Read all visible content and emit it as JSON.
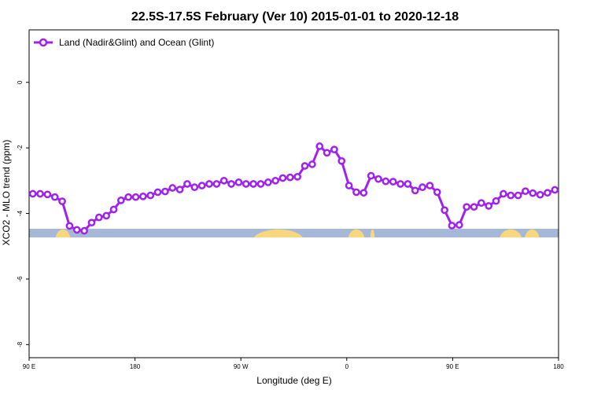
{
  "chart_data": {
    "type": "line",
    "title": "22.5S-17.5S February (Ver 10)   2015-01-01 to 2020-12-18",
    "xlabel": "Longitude (deg E)",
    "ylabel": "XCO2 - MLO trend (ppm)",
    "xlim": [
      90,
      450
    ],
    "ylim": [
      -8.4,
      1.6
    ],
    "x_ticks": [
      {
        "value": 90,
        "label": "90 E"
      },
      {
        "value": 162,
        "label": "180"
      },
      {
        "value": 234,
        "label": "90 W"
      },
      {
        "value": 306,
        "label": "0"
      },
      {
        "value": 378,
        "label": "90 E"
      },
      {
        "value": 450,
        "label": "180"
      }
    ],
    "y_ticks": [
      {
        "value": 0,
        "label": "0"
      },
      {
        "value": -2,
        "label": "-2"
      },
      {
        "value": -4,
        "label": "-4"
      },
      {
        "value": -6,
        "label": "-6"
      },
      {
        "value": -8,
        "label": "-8"
      }
    ],
    "legend": {
      "position": "top-left"
    },
    "series": [
      {
        "name": "Land (Nadir&Glint) and Ocean (Glint)",
        "color": "#a020f0",
        "x": [
          92.5,
          97.5,
          102.5,
          107.5,
          112.5,
          117.5,
          122.5,
          127.5,
          132.5,
          137.5,
          142.5,
          147.5,
          152.5,
          157.5,
          162.5,
          167.5,
          172.5,
          177.5,
          182.5,
          187.5,
          192.5,
          197.5,
          202.5,
          207.5,
          212.5,
          217.5,
          222.5,
          227.5,
          232.5,
          237.5,
          242.5,
          247.5,
          252.5,
          257.5,
          262.5,
          267.5,
          272.5,
          277.5,
          282.5,
          287.5,
          292.5,
          297.5,
          302.5,
          307.5,
          312.5,
          317.5,
          322.5,
          327.5,
          332.5,
          337.5,
          342.5,
          347.5,
          352.5,
          357.5,
          362.5,
          367.5,
          372.5,
          377.5,
          382.5,
          387.5,
          392.5,
          397.5,
          402.5,
          407.5,
          412.5,
          417.5,
          422.5,
          427.5,
          432.5,
          437.5,
          442.5,
          447.5
        ],
        "y": [
          -3.4,
          -3.4,
          -3.42,
          -3.5,
          -3.63,
          -4.38,
          -4.5,
          -4.53,
          -4.28,
          -4.12,
          -4.07,
          -3.88,
          -3.6,
          -3.5,
          -3.5,
          -3.48,
          -3.45,
          -3.35,
          -3.33,
          -3.22,
          -3.27,
          -3.1,
          -3.2,
          -3.15,
          -3.1,
          -3.1,
          -3.0,
          -3.1,
          -3.05,
          -3.1,
          -3.1,
          -3.1,
          -3.05,
          -3.0,
          -2.92,
          -2.9,
          -2.88,
          -2.55,
          -2.5,
          -1.95,
          -2.15,
          -2.05,
          -2.4,
          -3.15,
          -3.35,
          -3.37,
          -2.85,
          -2.95,
          -3.02,
          -3.03,
          -3.1,
          -3.1,
          -3.3,
          -3.2,
          -3.15,
          -3.35,
          -3.9,
          -4.37,
          -4.35,
          -3.8,
          -3.8,
          -3.68,
          -3.77,
          -3.62,
          -3.4,
          -3.45,
          -3.45,
          -3.32,
          -3.38,
          -3.43,
          -3.37,
          -3.28
        ]
      }
    ],
    "surface_band": {
      "y_center": -4.6,
      "ocean_color": "#a5b8d8",
      "land_color": "#f9d77e",
      "land_segments": [
        [
          108,
          118
        ],
        [
          243,
          276
        ],
        [
          307,
          318
        ],
        [
          322,
          325
        ],
        [
          410,
          425
        ],
        [
          427,
          437
        ]
      ]
    }
  }
}
